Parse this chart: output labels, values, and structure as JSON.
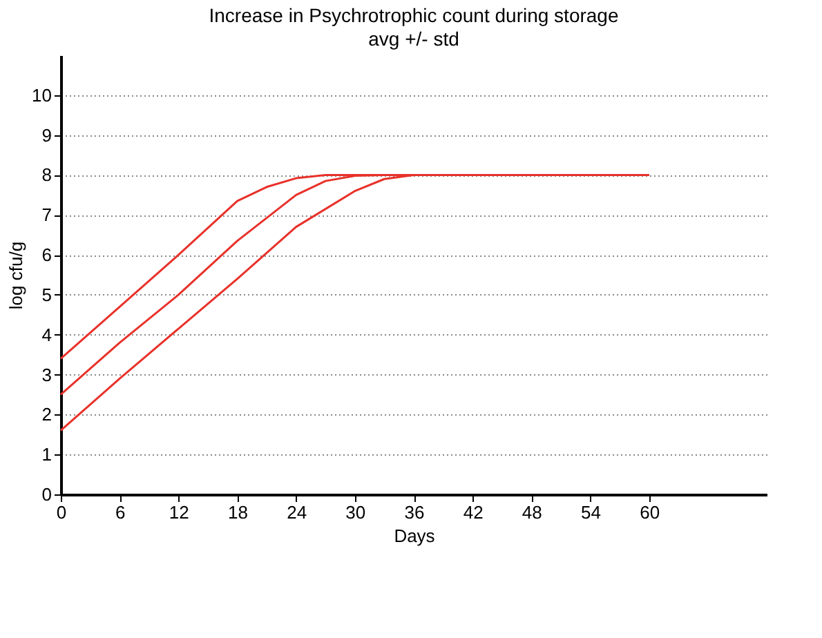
{
  "chart_data": {
    "type": "line",
    "title": "Increase in Psychrotrophic count during storage",
    "subtitle": "avg +/- std",
    "xlabel": "Days",
    "ylabel": "log cfu/g",
    "xlim": [
      0,
      72
    ],
    "xticks": [
      0,
      6,
      12,
      18,
      24,
      30,
      36,
      42,
      48,
      54,
      60
    ],
    "ylim": [
      0,
      11
    ],
    "yticks": [
      0,
      1,
      2,
      3,
      4,
      5,
      6,
      7,
      8,
      9,
      10
    ],
    "grid": "y",
    "legend": false,
    "marker": "none",
    "line_style": "solid",
    "series": [
      {
        "color": "#e8312a",
        "x": [
          0,
          6,
          12,
          18,
          21,
          24,
          27,
          60
        ],
        "values": [
          3.4,
          4.7,
          6.0,
          7.35,
          7.7,
          7.92,
          8.0,
          8.0
        ]
      },
      {
        "color": "#e8312a",
        "x": [
          0,
          6,
          12,
          18,
          24,
          27,
          30,
          33,
          60
        ],
        "values": [
          2.5,
          3.8,
          5.0,
          6.35,
          7.5,
          7.85,
          7.98,
          8.0,
          8.0
        ]
      },
      {
        "color": "#e8312a",
        "x": [
          0,
          6,
          12,
          18,
          24,
          30,
          33,
          36,
          60
        ],
        "values": [
          1.6,
          2.9,
          4.15,
          5.4,
          6.7,
          7.6,
          7.9,
          8.0,
          8.0
        ]
      }
    ]
  }
}
